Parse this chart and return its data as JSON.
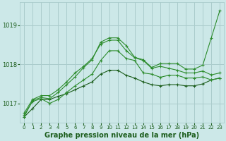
{
  "bg_color": "#cce8e8",
  "grid_color": "#aacccc",
  "line_colors": [
    "#1a5c1a",
    "#2d8c2d",
    "#2d8c2d",
    "#2d8c2d"
  ],
  "xlabel": "Graphe pression niveau de la mer (hPa)",
  "xlabel_fontsize": 7,
  "xlim": [
    -0.5,
    23.5
  ],
  "ylim": [
    1016.5,
    1019.6
  ],
  "yticks": [
    1017,
    1018,
    1019
  ],
  "ytick_fontsize": 6,
  "xtick_fontsize": 5,
  "xticks": [
    0,
    1,
    2,
    3,
    4,
    5,
    6,
    7,
    8,
    9,
    10,
    11,
    12,
    13,
    14,
    15,
    16,
    17,
    18,
    19,
    20,
    21,
    22,
    23
  ],
  "series": [
    [
      1016.65,
      1016.87,
      1017.1,
      1017.1,
      1017.18,
      1017.25,
      1017.35,
      1017.45,
      1017.55,
      1017.75,
      1017.85,
      1017.85,
      1017.72,
      1017.65,
      1017.55,
      1017.48,
      1017.45,
      1017.48,
      1017.48,
      1017.45,
      1017.45,
      1017.5,
      1017.6,
      1017.65
    ],
    [
      1016.7,
      1017.05,
      1017.12,
      1017.0,
      1017.1,
      1017.28,
      1017.45,
      1017.6,
      1017.75,
      1018.1,
      1018.35,
      1018.35,
      1018.15,
      1018.1,
      1017.78,
      1017.75,
      1017.67,
      1017.72,
      1017.72,
      1017.65,
      1017.65,
      1017.68,
      1017.6,
      1017.65
    ],
    [
      1016.75,
      1017.1,
      1017.2,
      1017.2,
      1017.35,
      1017.55,
      1017.78,
      1017.95,
      1018.15,
      1018.52,
      1018.62,
      1018.62,
      1018.35,
      1018.17,
      1018.1,
      1017.9,
      1017.95,
      1017.9,
      1017.85,
      1017.78,
      1017.78,
      1017.83,
      1017.73,
      1017.78
    ],
    [
      1016.65,
      1017.08,
      1017.15,
      1017.12,
      1017.28,
      1017.48,
      1017.68,
      1017.92,
      1018.12,
      1018.57,
      1018.68,
      1018.68,
      1018.48,
      1018.18,
      1018.12,
      1017.92,
      1018.02,
      1018.02,
      1018.02,
      1017.88,
      1017.88,
      1017.98,
      1018.68,
      1019.38
    ]
  ]
}
